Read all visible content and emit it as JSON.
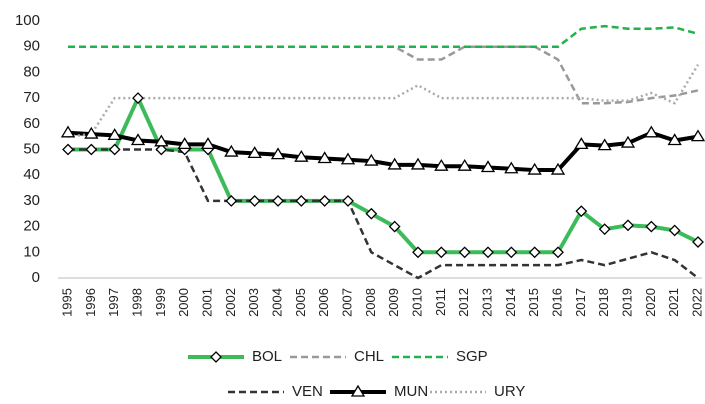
{
  "chart_data": {
    "type": "line",
    "categories": [
      "1995",
      "1996",
      "1997",
      "1998",
      "1999",
      "2000",
      "2001",
      "2002",
      "2003",
      "2004",
      "2005",
      "2006",
      "2007",
      "2008",
      "2009",
      "2010",
      "2011",
      "2012",
      "2013",
      "2014",
      "2015",
      "2016",
      "2017",
      "2018",
      "2019",
      "2020",
      "2021",
      "2022"
    ],
    "ylim": [
      0,
      100
    ],
    "yticks": [
      0,
      10,
      20,
      30,
      40,
      50,
      60,
      70,
      80,
      90,
      100
    ],
    "grid": false,
    "legend": "bottom",
    "series": [
      {
        "name": "BOL",
        "color": "#3dbb5a",
        "line_style": "solid",
        "marker": "diamond",
        "values": [
          50,
          50,
          50,
          70,
          50,
          50,
          50,
          30,
          30,
          30,
          30,
          30,
          30,
          25,
          20,
          10,
          10,
          10,
          10,
          10,
          10,
          10,
          26,
          19,
          20.5,
          20,
          18.5,
          14
        ]
      },
      {
        "name": "CHL",
        "color": "#999999",
        "line_style": "dashed",
        "values": [
          90,
          90,
          90,
          90,
          90,
          90,
          90,
          90,
          90,
          90,
          90,
          90,
          90,
          90,
          90,
          85,
          85,
          90,
          90,
          90,
          90,
          85,
          68,
          68,
          68.5,
          70,
          71,
          73
        ]
      },
      {
        "name": "SGP",
        "color": "#22b14c",
        "line_style": "dashed",
        "values": [
          90,
          90,
          90,
          90,
          90,
          90,
          90,
          90,
          90,
          90,
          90,
          90,
          90,
          90,
          90,
          90,
          90,
          90,
          90,
          90,
          90,
          90,
          97,
          98,
          97,
          97,
          97.5,
          95
        ]
      },
      {
        "name": "VEN",
        "color": "#333333",
        "line_style": "dashed",
        "values": [
          50,
          50,
          50,
          50,
          50,
          49,
          30,
          30,
          30,
          30,
          30,
          30,
          30,
          10,
          5,
          0,
          5,
          5,
          5,
          5,
          5,
          5,
          7,
          5,
          7.5,
          10,
          7,
          0
        ]
      },
      {
        "name": "MUN",
        "color": "#000000",
        "line_style": "solid",
        "marker": "triangle",
        "values": [
          56.5,
          56,
          55.5,
          53.5,
          53,
          52,
          52,
          49,
          48.5,
          48,
          47,
          46.5,
          46,
          45.5,
          44,
          44,
          43.5,
          43.5,
          43,
          42.5,
          42,
          42,
          52,
          51.5,
          52.5,
          56.5,
          53.5,
          55
        ]
      },
      {
        "name": "URY",
        "color": "#aaaaaa",
        "line_style": "dotted",
        "values": [
          55,
          56,
          70,
          70,
          70,
          70,
          70,
          70,
          70,
          70,
          70,
          70,
          70,
          70,
          70,
          75,
          70,
          70,
          70,
          70,
          70,
          70,
          70,
          69,
          69,
          72,
          68,
          83
        ]
      }
    ]
  }
}
